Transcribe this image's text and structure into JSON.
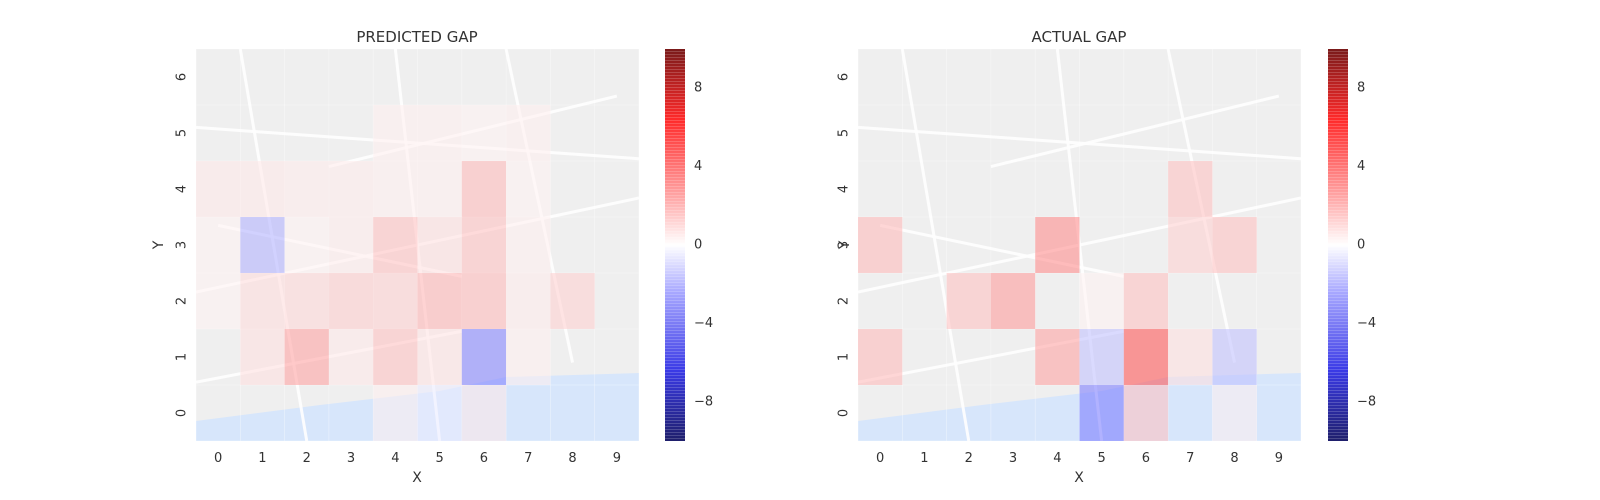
{
  "chart_data": [
    {
      "type": "heatmap",
      "title": "PREDICTED GAP",
      "xlabel": "X",
      "ylabel": "Y",
      "x_ticks": [
        "0",
        "1",
        "2",
        "3",
        "4",
        "5",
        "6",
        "7",
        "8",
        "9"
      ],
      "y_ticks": [
        "0",
        "1",
        "2",
        "3",
        "4",
        "5",
        "6"
      ],
      "xlim": [
        -0.5,
        9.5
      ],
      "ylim": [
        -0.5,
        6.5
      ],
      "background": "street map (Porto city centre)",
      "colormap": "seismic",
      "clim": [
        -10,
        10
      ],
      "colorbar_ticks": [
        "8",
        "4",
        "0",
        "−4",
        "−8"
      ],
      "cells": [
        {
          "x": 0,
          "y": 4,
          "value": 0.6
        },
        {
          "x": 1,
          "y": 4,
          "value": 0.6
        },
        {
          "x": 2,
          "y": 4,
          "value": 0.5
        },
        {
          "x": 3,
          "y": 4,
          "value": 0.5
        },
        {
          "x": 4,
          "y": 4,
          "value": 0.4
        },
        {
          "x": 5,
          "y": 4,
          "value": 0.4
        },
        {
          "x": 6,
          "y": 4,
          "value": 1.8
        },
        {
          "x": 7,
          "y": 4,
          "value": 0.3
        },
        {
          "x": 4,
          "y": 5,
          "value": 0.4
        },
        {
          "x": 5,
          "y": 5,
          "value": 0.4
        },
        {
          "x": 6,
          "y": 5,
          "value": 0.3
        },
        {
          "x": 7,
          "y": 5,
          "value": 0.4
        },
        {
          "x": 0,
          "y": 3,
          "value": 0.3
        },
        {
          "x": 1,
          "y": 3,
          "value": -2.0
        },
        {
          "x": 2,
          "y": 3,
          "value": 0.3
        },
        {
          "x": 3,
          "y": 3,
          "value": 0.5
        },
        {
          "x": 4,
          "y": 3,
          "value": 1.6
        },
        {
          "x": 5,
          "y": 3,
          "value": 0.8
        },
        {
          "x": 6,
          "y": 3,
          "value": 1.6
        },
        {
          "x": 7,
          "y": 3,
          "value": 0.4
        },
        {
          "x": 0,
          "y": 2,
          "value": 0.3
        },
        {
          "x": 1,
          "y": 2,
          "value": 0.9
        },
        {
          "x": 2,
          "y": 2,
          "value": 1.0
        },
        {
          "x": 3,
          "y": 2,
          "value": 1.3
        },
        {
          "x": 4,
          "y": 2,
          "value": 1.2
        },
        {
          "x": 5,
          "y": 2,
          "value": 1.9
        },
        {
          "x": 6,
          "y": 2,
          "value": 1.8
        },
        {
          "x": 7,
          "y": 2,
          "value": 0.5
        },
        {
          "x": 8,
          "y": 2,
          "value": 1.2
        },
        {
          "x": 1,
          "y": 1,
          "value": 0.8
        },
        {
          "x": 2,
          "y": 1,
          "value": 2.4
        },
        {
          "x": 3,
          "y": 1,
          "value": 0.6
        },
        {
          "x": 4,
          "y": 1,
          "value": 1.6
        },
        {
          "x": 5,
          "y": 1,
          "value": 0.7
        },
        {
          "x": 6,
          "y": 1,
          "value": -3.2
        },
        {
          "x": 7,
          "y": 1,
          "value": 0.4
        },
        {
          "x": 4,
          "y": 0,
          "value": 0.4
        },
        {
          "x": 5,
          "y": 0,
          "value": -0.5
        },
        {
          "x": 6,
          "y": 0,
          "value": 0.6
        }
      ]
    },
    {
      "type": "heatmap",
      "title": "ACTUAL GAP",
      "xlabel": "X",
      "ylabel": "Y",
      "x_ticks": [
        "0",
        "1",
        "2",
        "3",
        "4",
        "5",
        "6",
        "7",
        "8",
        "9"
      ],
      "y_ticks": [
        "0",
        "1",
        "2",
        "3",
        "4",
        "5",
        "6"
      ],
      "xlim": [
        -0.5,
        9.5
      ],
      "ylim": [
        -0.5,
        6.5
      ],
      "background": "street map (Porto city centre)",
      "colormap": "seismic",
      "clim": [
        -10,
        10
      ],
      "colorbar_ticks": [
        "8",
        "4",
        "0",
        "−4",
        "−8"
      ],
      "cells": [
        {
          "x": 7,
          "y": 4,
          "value": 1.6
        },
        {
          "x": 0,
          "y": 3,
          "value": 1.8
        },
        {
          "x": 4,
          "y": 3,
          "value": 3.0
        },
        {
          "x": 7,
          "y": 3,
          "value": 1.2
        },
        {
          "x": 8,
          "y": 3,
          "value": 1.6
        },
        {
          "x": 2,
          "y": 2,
          "value": 1.6
        },
        {
          "x": 3,
          "y": 2,
          "value": 2.6
        },
        {
          "x": 5,
          "y": 2,
          "value": 0.3
        },
        {
          "x": 6,
          "y": 2,
          "value": 1.6
        },
        {
          "x": 0,
          "y": 1,
          "value": 1.8
        },
        {
          "x": 4,
          "y": 1,
          "value": 2.4
        },
        {
          "x": 5,
          "y": 1,
          "value": -1.6
        },
        {
          "x": 6,
          "y": 1,
          "value": 4.4
        },
        {
          "x": 7,
          "y": 1,
          "value": 0.8
        },
        {
          "x": 8,
          "y": 1,
          "value": -1.6
        },
        {
          "x": 5,
          "y": 0,
          "value": -3.4
        },
        {
          "x": 6,
          "y": 0,
          "value": 1.6
        },
        {
          "x": 8,
          "y": 0,
          "value": 0.4
        }
      ]
    }
  ]
}
